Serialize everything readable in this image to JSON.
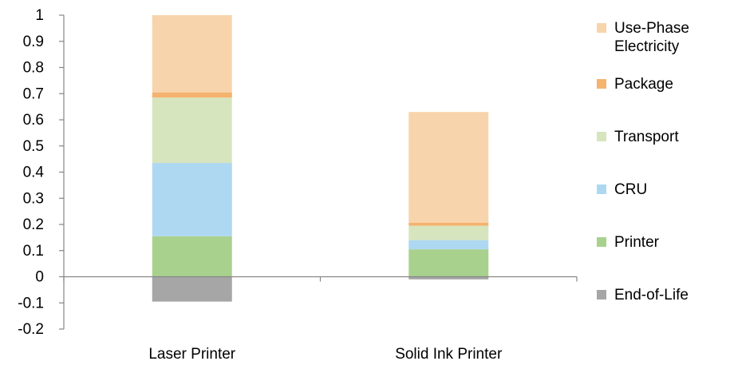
{
  "chart_data": {
    "type": "stacked-bar",
    "title": "",
    "xlabel": "",
    "ylabel": "",
    "categories": [
      "Laser Printer",
      "Solid Ink Printer"
    ],
    "ylim": [
      -0.2,
      1
    ],
    "yticks": [
      {
        "value": 1,
        "label": "1"
      },
      {
        "value": 0.9,
        "label": "0.9"
      },
      {
        "value": 0.8,
        "label": "0.8"
      },
      {
        "value": 0.7,
        "label": "0.7"
      },
      {
        "value": 0.6,
        "label": "0.6"
      },
      {
        "value": 0.5,
        "label": "0.5"
      },
      {
        "value": 0.4,
        "label": "0.4"
      },
      {
        "value": 0.3,
        "label": "0.3"
      },
      {
        "value": 0.2,
        "label": "0.2"
      },
      {
        "value": 0.1,
        "label": "0.1"
      },
      {
        "value": 0,
        "label": "0"
      },
      {
        "value": -0.1,
        "label": "-0.1"
      },
      {
        "value": -0.2,
        "label": "-0.2"
      }
    ],
    "grid": false,
    "legend_position": "right",
    "series": [
      {
        "name": "End-of-Life",
        "color": "#a6a6a6",
        "values": [
          -0.095,
          -0.01
        ]
      },
      {
        "name": "Printer",
        "color": "#a9d18e",
        "values": [
          0.155,
          0.105
        ]
      },
      {
        "name": "CRU",
        "color": "#aed8f2",
        "values": [
          0.28,
          0.035
        ]
      },
      {
        "name": "Transport",
        "color": "#d6e5bd",
        "values": [
          0.25,
          0.055
        ]
      },
      {
        "name": "Package",
        "color": "#f4b36e",
        "values": [
          0.02,
          0.012
        ]
      },
      {
        "name": "Use-Phase Electricity",
        "color": "#f8d4ac",
        "values": [
          0.295,
          0.423
        ]
      }
    ],
    "legend_order": [
      {
        "lines": [
          "Use-Phase",
          "Electricity"
        ],
        "color": "#f8d4ac"
      },
      {
        "lines": [
          "Package"
        ],
        "color": "#f4b36e"
      },
      {
        "lines": [
          "Transport"
        ],
        "color": "#d6e5bd"
      },
      {
        "lines": [
          "CRU"
        ],
        "color": "#aed8f2"
      },
      {
        "lines": [
          "Printer"
        ],
        "color": "#a9d18e"
      },
      {
        "lines": [
          "End-of-Life"
        ],
        "color": "#a6a6a6"
      }
    ]
  }
}
